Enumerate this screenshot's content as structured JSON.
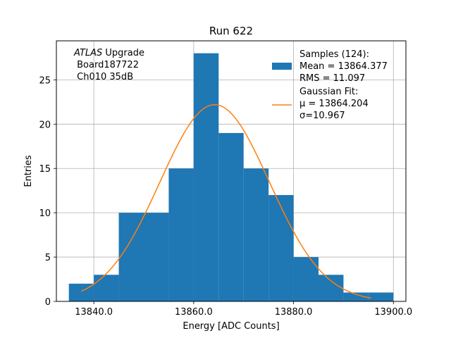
{
  "chart_data": {
    "type": "bar",
    "title": "Run 622",
    "xlabel": "Energy [ADC Counts]",
    "ylabel": "Entries",
    "xlim": [
      13832.5,
      13902.5
    ],
    "ylim": [
      0,
      29.4
    ],
    "xticks": [
      13840.0,
      13860.0,
      13880.0,
      13900.0
    ],
    "xtick_labels": [
      "13840.0",
      "13860.0",
      "13880.0",
      "13900.0"
    ],
    "yticks": [
      0,
      5,
      10,
      15,
      20,
      25
    ],
    "ytick_labels": [
      "0",
      "5",
      "10",
      "15",
      "20",
      "25"
    ],
    "grid": true,
    "bar_color": "#1f77b4",
    "fit_color": "#ff7f0e",
    "bin_edges": [
      13835.0,
      13840.0,
      13845.0,
      13850.0,
      13855.0,
      13860.0,
      13865.0,
      13870.0,
      13875.0,
      13880.0,
      13885.0,
      13890.0,
      13895.0,
      13900.0
    ],
    "counts": [
      2,
      3,
      10,
      10,
      15,
      28,
      19,
      15,
      12,
      5,
      3,
      1,
      1
    ],
    "fit": {
      "mu": 13864.204,
      "sigma": 10.967,
      "amplitude": 22.2,
      "x_range": [
        13837.5,
        13895.5
      ]
    },
    "legend": {
      "position": "upper right",
      "entries": [
        {
          "kind": "bar",
          "lines": [
            "Samples (124):",
            " Mean = 13864.377",
            " RMS = 11.097"
          ]
        },
        {
          "kind": "line",
          "lines": [
            "Gaussian Fit:",
            " μ = 13864.204",
            " σ=10.967"
          ]
        }
      ]
    },
    "annotation": {
      "experiment": "ATLAS",
      "line1_rest": " Upgrade",
      "line2": " Board187722",
      "line3": " Ch010 35dB"
    }
  }
}
